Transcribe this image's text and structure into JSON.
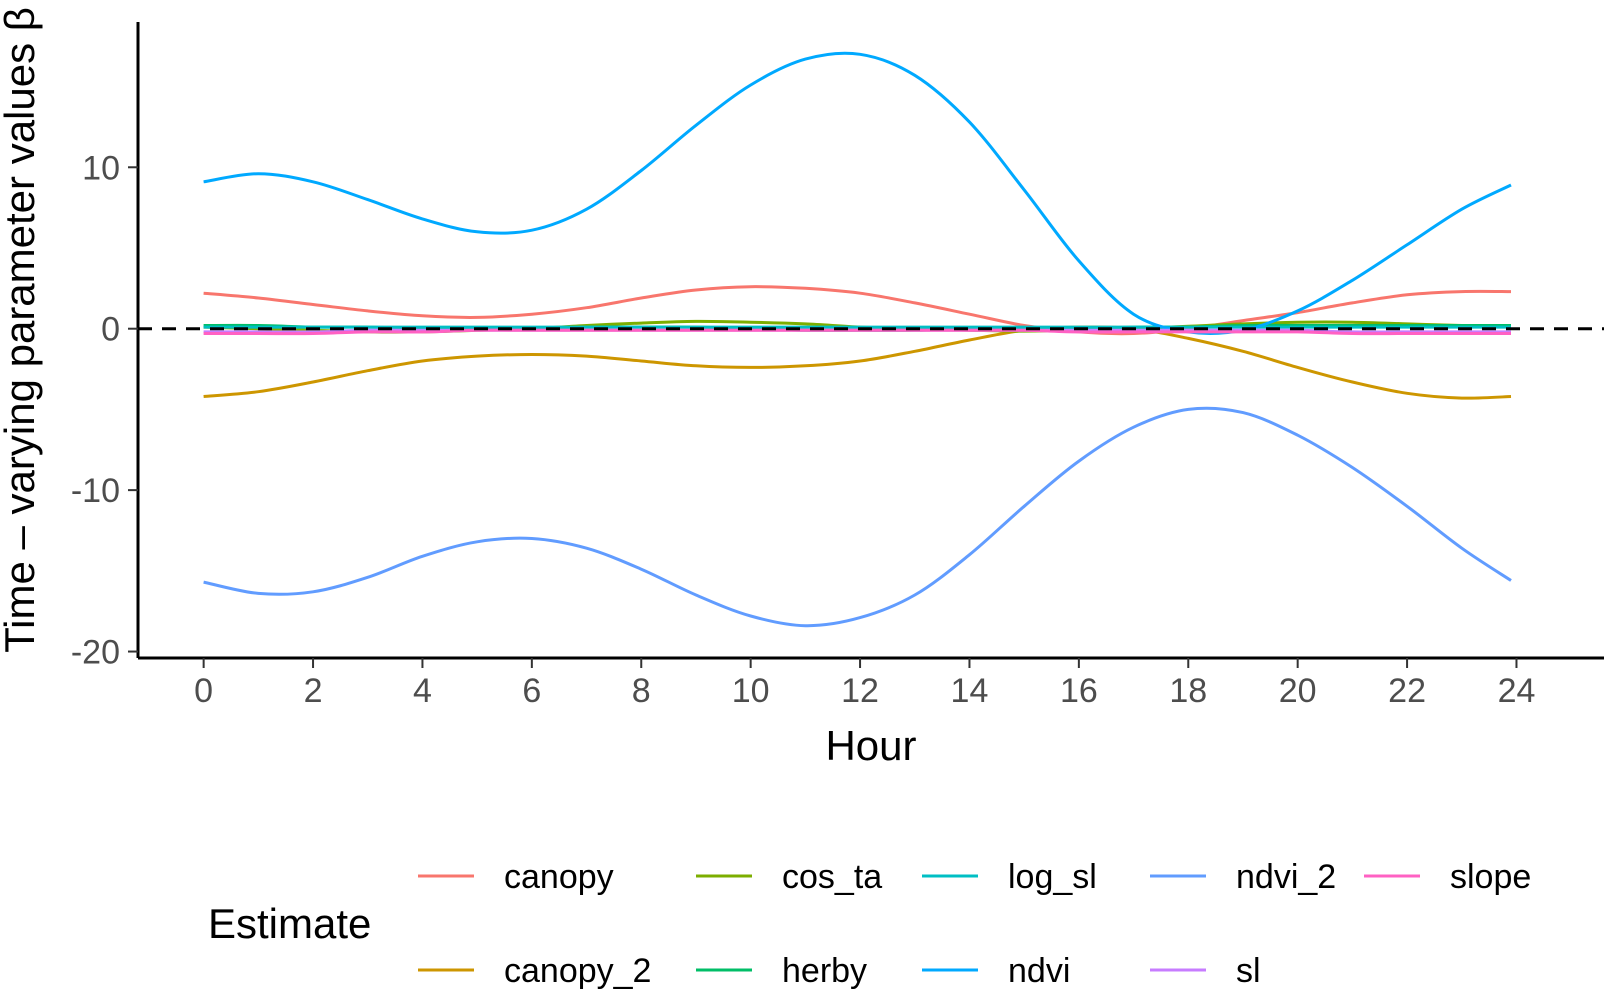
{
  "chart_data": {
    "type": "line",
    "xlabel": "Hour",
    "ylabel": "Time – varying parameter values β",
    "xlim": [
      -1.2,
      25.6
    ],
    "ylim": [
      -20.4,
      19.0
    ],
    "xticks": [
      0,
      2,
      4,
      6,
      8,
      10,
      12,
      14,
      16,
      18,
      20,
      22,
      24
    ],
    "yticks": [
      10,
      0,
      -10,
      -20
    ],
    "ytick_labels": [
      "10",
      "0",
      "-10",
      "-20"
    ],
    "reference_line": {
      "y": 0,
      "style": "dashed",
      "color": "#000000"
    },
    "grid": false,
    "legend": {
      "title": "Estimate",
      "position": "bottom"
    },
    "x": [
      0,
      1,
      2,
      3,
      4,
      5,
      6,
      7,
      8,
      9,
      10,
      11,
      12,
      13,
      14,
      15,
      16,
      17,
      18,
      19,
      20,
      21,
      22,
      23,
      23.9
    ],
    "series": [
      {
        "name": "canopy",
        "color": "#F8766D",
        "values": [
          2.2,
          1.9,
          1.5,
          1.1,
          0.8,
          0.7,
          0.9,
          1.3,
          1.9,
          2.4,
          2.6,
          2.5,
          2.2,
          1.6,
          0.9,
          0.2,
          -0.2,
          -0.3,
          0.0,
          0.5,
          1.0,
          1.6,
          2.1,
          2.3,
          2.3
        ]
      },
      {
        "name": "canopy_2",
        "color": "#CD9600",
        "values": [
          -4.2,
          -3.9,
          -3.3,
          -2.6,
          -2.0,
          -1.7,
          -1.6,
          -1.7,
          -2.0,
          -2.3,
          -2.4,
          -2.3,
          -2.0,
          -1.4,
          -0.7,
          -0.1,
          0.1,
          0.0,
          -0.6,
          -1.4,
          -2.4,
          -3.3,
          -4.0,
          -4.3,
          -4.2
        ]
      },
      {
        "name": "cos_ta",
        "color": "#7CAE00",
        "values": [
          0.1,
          0.0,
          -0.1,
          -0.2,
          -0.2,
          -0.1,
          0.0,
          0.2,
          0.35,
          0.45,
          0.4,
          0.3,
          0.1,
          0.0,
          -0.1,
          -0.15,
          -0.1,
          0.0,
          0.15,
          0.3,
          0.4,
          0.4,
          0.3,
          0.2,
          0.15
        ]
      },
      {
        "name": "herby",
        "color": "#00BE67",
        "values": [
          0.2,
          0.2,
          0.1,
          0.1,
          0.0,
          0.0,
          0.0,
          0.1,
          0.1,
          0.1,
          0.0,
          -0.1,
          -0.1,
          -0.1,
          0.0,
          0.0,
          0.0,
          0.1,
          0.1,
          0.2,
          0.2,
          0.2,
          0.2,
          0.2,
          0.2
        ]
      },
      {
        "name": "log_sl",
        "color": "#00BFC4",
        "values": [
          0.1,
          0.1,
          0.1,
          0.1,
          0.1,
          0.1,
          0.1,
          0.1,
          0.1,
          0.1,
          0.1,
          0.1,
          0.1,
          0.1,
          0.1,
          0.1,
          0.1,
          0.1,
          0.1,
          0.1,
          0.1,
          0.1,
          0.1,
          0.1,
          0.1
        ]
      },
      {
        "name": "ndvi",
        "color": "#00A9FF",
        "values": [
          9.1,
          9.6,
          9.1,
          8.0,
          6.8,
          6.0,
          6.1,
          7.4,
          9.8,
          12.6,
          15.1,
          16.7,
          17.0,
          15.7,
          12.8,
          8.6,
          4.2,
          0.9,
          -0.2,
          -0.1,
          1.1,
          3.0,
          5.2,
          7.4,
          8.9
        ]
      },
      {
        "name": "ndvi_2",
        "color": "#619CFF",
        "values": [
          -15.7,
          -16.4,
          -16.3,
          -15.4,
          -14.1,
          -13.2,
          -13.0,
          -13.6,
          -14.9,
          -16.5,
          -17.8,
          -18.4,
          -17.9,
          -16.5,
          -14.0,
          -11.0,
          -8.2,
          -6.1,
          -5.0,
          -5.2,
          -6.6,
          -8.6,
          -11.0,
          -13.6,
          -15.6
        ]
      },
      {
        "name": "sl",
        "color": "#C77CFF",
        "values": [
          -0.2,
          -0.2,
          -0.2,
          -0.1,
          -0.1,
          -0.1,
          -0.1,
          -0.1,
          -0.1,
          -0.1,
          -0.1,
          -0.1,
          -0.1,
          -0.1,
          -0.1,
          -0.1,
          -0.1,
          -0.1,
          -0.1,
          -0.1,
          -0.1,
          -0.2,
          -0.2,
          -0.2,
          -0.2
        ]
      },
      {
        "name": "slope",
        "color": "#FF61C3",
        "values": [
          -0.3,
          -0.3,
          -0.3,
          -0.2,
          -0.2,
          -0.1,
          -0.1,
          -0.1,
          -0.1,
          -0.1,
          -0.1,
          -0.1,
          -0.1,
          -0.1,
          -0.1,
          -0.1,
          -0.2,
          -0.2,
          -0.2,
          -0.2,
          -0.2,
          -0.3,
          -0.3,
          -0.3,
          -0.3
        ]
      }
    ]
  }
}
